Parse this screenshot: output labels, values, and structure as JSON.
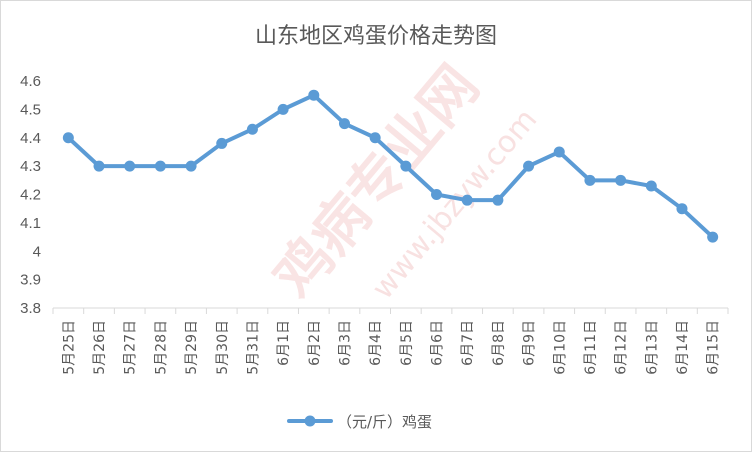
{
  "watermark": {
    "main": "鸡病专业网",
    "url": "www.jbzyw.com"
  },
  "chart_data": {
    "type": "line",
    "title": "山东地区鸡蛋价格走势图",
    "xlabel": "",
    "ylabel": "",
    "categories": [
      "5月25日",
      "5月26日",
      "5月27日",
      "5月28日",
      "5月29日",
      "5月30日",
      "5月31日",
      "6月1日",
      "6月2日",
      "6月3日",
      "6月4日",
      "6月5日",
      "6月6日",
      "6月7日",
      "6月8日",
      "6月9日",
      "6月10日",
      "6月11日",
      "6月12日",
      "6月13日",
      "6月14日",
      "6月15日"
    ],
    "series": [
      {
        "name": "（元/斤）鸡蛋",
        "color": "#5b9bd5",
        "values": [
          4.4,
          4.3,
          4.3,
          4.3,
          4.3,
          4.38,
          4.43,
          4.5,
          4.55,
          4.45,
          4.4,
          4.3,
          4.2,
          4.18,
          4.18,
          4.3,
          4.35,
          4.25,
          4.25,
          4.23,
          4.15,
          4.05
        ]
      }
    ],
    "ylim": [
      3.8,
      4.6
    ],
    "yticks": [
      "3.8",
      "3.9",
      "4",
      "4.1",
      "4.2",
      "4.3",
      "4.4",
      "4.5",
      "4.6"
    ],
    "grid": false,
    "legend": "bottom"
  }
}
